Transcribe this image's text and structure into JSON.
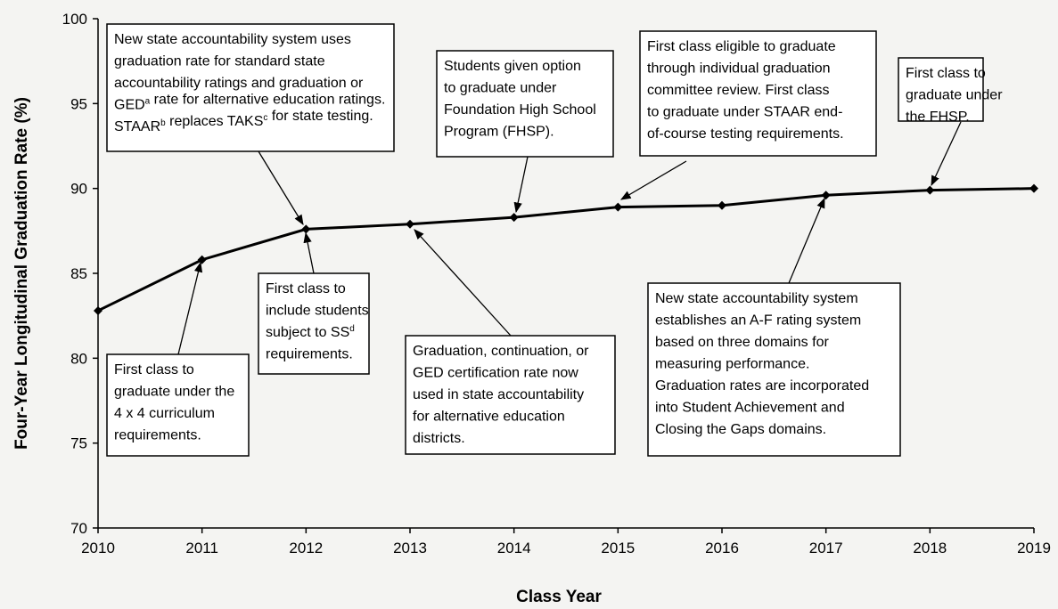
{
  "chart_data": {
    "type": "line",
    "x_label": "Class Year",
    "y_label": "Four-Year Longitudinal Graduation Rate (%)",
    "x": [
      2010,
      2011,
      2012,
      2013,
      2014,
      2015,
      2016,
      2017,
      2018,
      2019
    ],
    "values": [
      82.8,
      85.8,
      87.6,
      87.9,
      88.3,
      88.9,
      89.0,
      89.6,
      89.9,
      90.0
    ],
    "color": "#000000",
    "xlim": [
      2010,
      2019
    ],
    "xticks": [
      2010,
      2011,
      2012,
      2013,
      2014,
      2015,
      2016,
      2017,
      2018,
      2019
    ],
    "ylim": [
      70,
      100
    ],
    "yticks": [
      70,
      75,
      80,
      85,
      90,
      95,
      100
    ],
    "grid": false,
    "annotations": [
      {
        "lines": [
          [
            "New state accountability system uses"
          ],
          [
            "graduation rate for standard state"
          ],
          [
            "accountability ratings and graduation or"
          ],
          [
            "GED",
            {
              "sup": "a"
            },
            " rate for alternative education ratings."
          ],
          [
            "STAAR",
            {
              "sup": "b"
            },
            " replaces TAKS",
            {
              "sup": "c"
            },
            " for state testing."
          ]
        ]
      },
      {
        "lines": [
          [
            "Students given option"
          ],
          [
            "to graduate under"
          ],
          [
            "Foundation High School"
          ],
          [
            "Program (FHSP)."
          ]
        ]
      },
      {
        "lines": [
          [
            "First class eligible to graduate"
          ],
          [
            "through individual graduation"
          ],
          [
            "committee review. First class"
          ],
          [
            "to graduate under STAAR end-"
          ],
          [
            "of-course testing requirements."
          ]
        ]
      },
      {
        "lines": [
          [
            "First class to"
          ],
          [
            "graduate under"
          ],
          [
            "the FHSP."
          ]
        ]
      },
      {
        "lines": [
          [
            "First class to"
          ],
          [
            "graduate under the"
          ],
          [
            "4 x 4 curriculum"
          ],
          [
            "requirements."
          ]
        ]
      },
      {
        "lines": [
          [
            "First class to"
          ],
          [
            "include students"
          ],
          [
            "subject to SS",
            {
              "sup": "d"
            }
          ],
          [
            "requirements."
          ]
        ]
      },
      {
        "lines": [
          [
            "Graduation, continuation, or"
          ],
          [
            "GED certification rate now"
          ],
          [
            "used in state accountability"
          ],
          [
            "for alternative education"
          ],
          [
            "districts."
          ]
        ]
      },
      {
        "lines": [
          [
            "New state accountability system"
          ],
          [
            "establishes an A-F rating system"
          ],
          [
            "based on three domains for"
          ],
          [
            "measuring performance."
          ],
          [
            "Graduation rates are incorporated"
          ],
          [
            "into Student Achievement and"
          ],
          [
            "Closing the Gaps domains."
          ]
        ]
      }
    ]
  }
}
